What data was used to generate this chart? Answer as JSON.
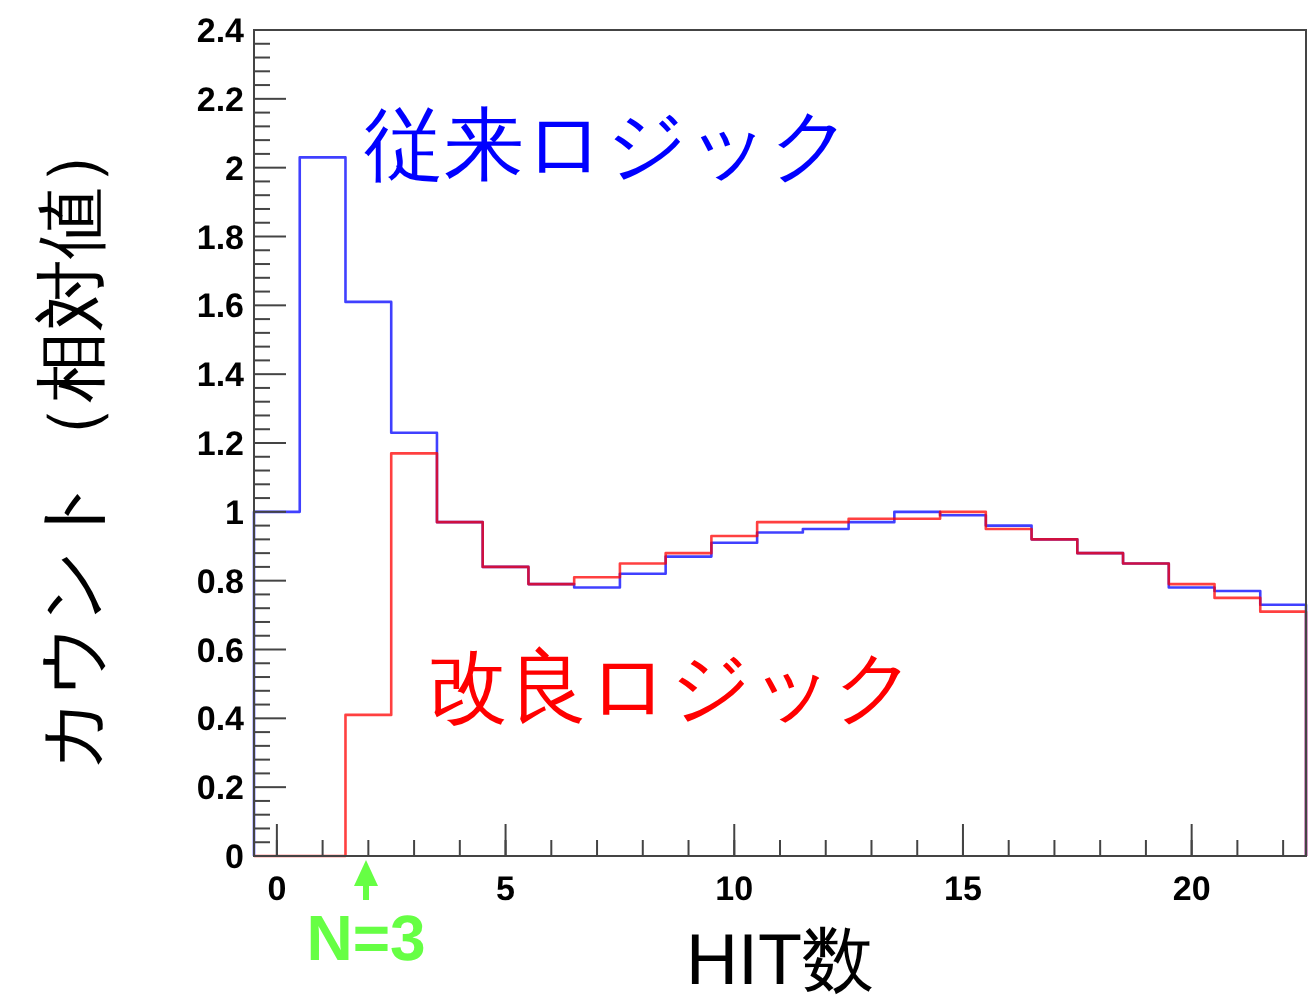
{
  "chart_data": {
    "type": "histogram",
    "xlabel": "HIT数",
    "ylabel": "カウント（相対値）",
    "bins": [
      -0.5,
      0.5,
      1.5,
      2.5,
      3.5,
      4.5,
      5.5,
      6.5,
      7.5,
      8.5,
      9.5,
      10.5,
      11.5,
      12.5,
      13.5,
      14.5,
      15.5,
      16.5,
      17.5,
      18.5,
      19.5,
      20.5,
      21.5,
      22.5
    ],
    "series": [
      {
        "name": "従来ロジック",
        "color": "#0000ff",
        "values": [
          1.0,
          2.03,
          1.61,
          1.23,
          0.97,
          0.84,
          0.79,
          0.78,
          0.82,
          0.87,
          0.91,
          0.94,
          0.95,
          0.97,
          1.0,
          0.99,
          0.96,
          0.92,
          0.88,
          0.85,
          0.78,
          0.77,
          0.73
        ]
      },
      {
        "name": "改良ロジック",
        "color": "#ff0000",
        "values": [
          0,
          0,
          0.41,
          1.17,
          0.97,
          0.84,
          0.79,
          0.81,
          0.85,
          0.88,
          0.93,
          0.97,
          0.97,
          0.98,
          0.98,
          1.0,
          0.95,
          0.92,
          0.88,
          0.85,
          0.79,
          0.75,
          0.71
        ]
      }
    ],
    "xlim": [
      -0.5,
      22.5
    ],
    "ylim": [
      0,
      2.4
    ],
    "xticks": [
      0,
      5,
      10,
      15,
      20
    ],
    "yticks": [
      0,
      0.2,
      0.4,
      0.6,
      0.8,
      1,
      1.2,
      1.4,
      1.6,
      1.8,
      2,
      2.2,
      2.4
    ],
    "annotations": [
      "N=3"
    ],
    "grid": false,
    "legend": false
  }
}
